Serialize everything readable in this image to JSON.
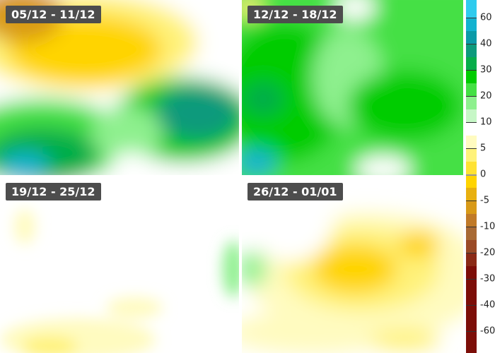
{
  "panels": [
    {
      "label": "05/12 - 11/12"
    },
    {
      "label": "12/12 - 18/12"
    },
    {
      "label": "19/12 - 25/12"
    },
    {
      "label": "26/12 - 01/01"
    }
  ],
  "legend": {
    "ticks": [
      "60",
      "40",
      "30",
      "20",
      "10",
      "5",
      "0",
      "-5",
      "-10",
      "-20",
      "-30",
      "-40",
      "-60"
    ],
    "colors": [
      "#2ecbee",
      "#12b2d0",
      "#0a9aa8",
      "#0c9a7c",
      "#06ad4a",
      "#00cc00",
      "#44e044",
      "#8ef08e",
      "#c6f7c6",
      "#ffffff",
      "#fffbc0",
      "#fff27a",
      "#ffe233",
      "#ffd400",
      "#e8b010",
      "#d89a18",
      "#c07a28",
      "#a86a34",
      "#9a4a26",
      "#8a2a16",
      "#7c0e08"
    ]
  }
}
